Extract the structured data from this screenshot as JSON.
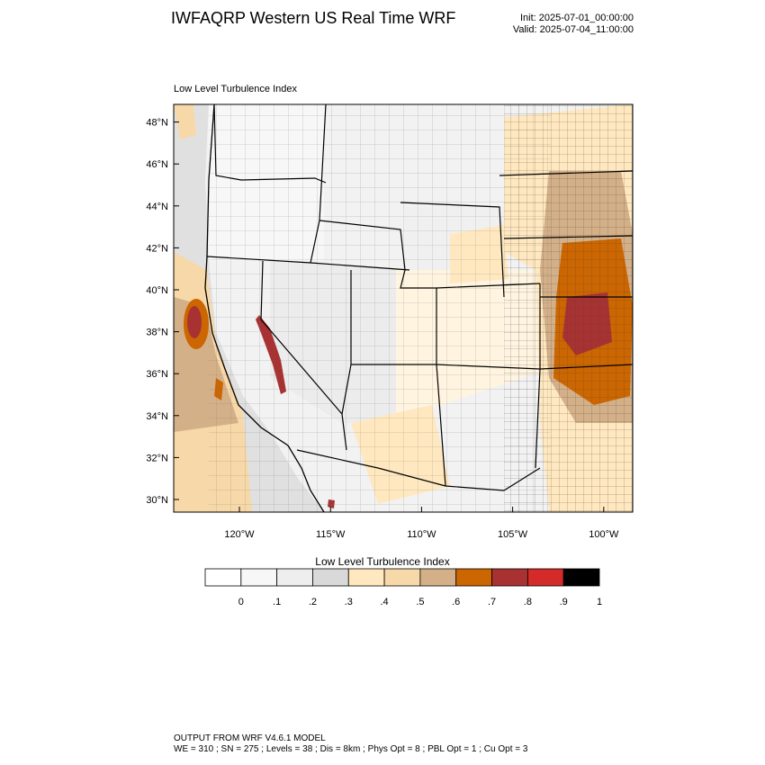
{
  "header": {
    "title": "IWFAQRP Western US Real Time WRF",
    "init": "Init: 2025-07-01_00:00:00",
    "valid": "Valid: 2025-07-04_11:00:00"
  },
  "map": {
    "field_title": "Low Level Turbulence Index",
    "lat_labels": [
      "30°N",
      "32°N",
      "34°N",
      "36°N",
      "38°N",
      "40°N",
      "42°N",
      "44°N",
      "46°N",
      "48°N"
    ],
    "lon_labels": [
      "120°W",
      "115°W",
      "110°W",
      "105°W",
      "100°W"
    ]
  },
  "colorbar": {
    "title": "Low Level Turbulence Index",
    "colors": [
      "#ffffff",
      "#f7f7f7",
      "#eeeeee",
      "#d9d9d9",
      "#ffe8bf",
      "#f7d8a8",
      "#d4b088",
      "#cc6600",
      "#a83232",
      "#d42a2a",
      "#000000"
    ],
    "labels": [
      "0",
      ".1",
      ".2",
      ".3",
      ".4",
      ".5",
      ".6",
      ".7",
      ".8",
      ".9",
      "1"
    ]
  },
  "footer": {
    "line1": "OUTPUT FROM WRF V4.6.1 MODEL",
    "line2": "WE = 310 ; SN = 275 ; Levels = 38 ; Dis = 8km ; Phys Opt = 8 ; PBL Opt = 1 ; Cu Opt = 3"
  }
}
